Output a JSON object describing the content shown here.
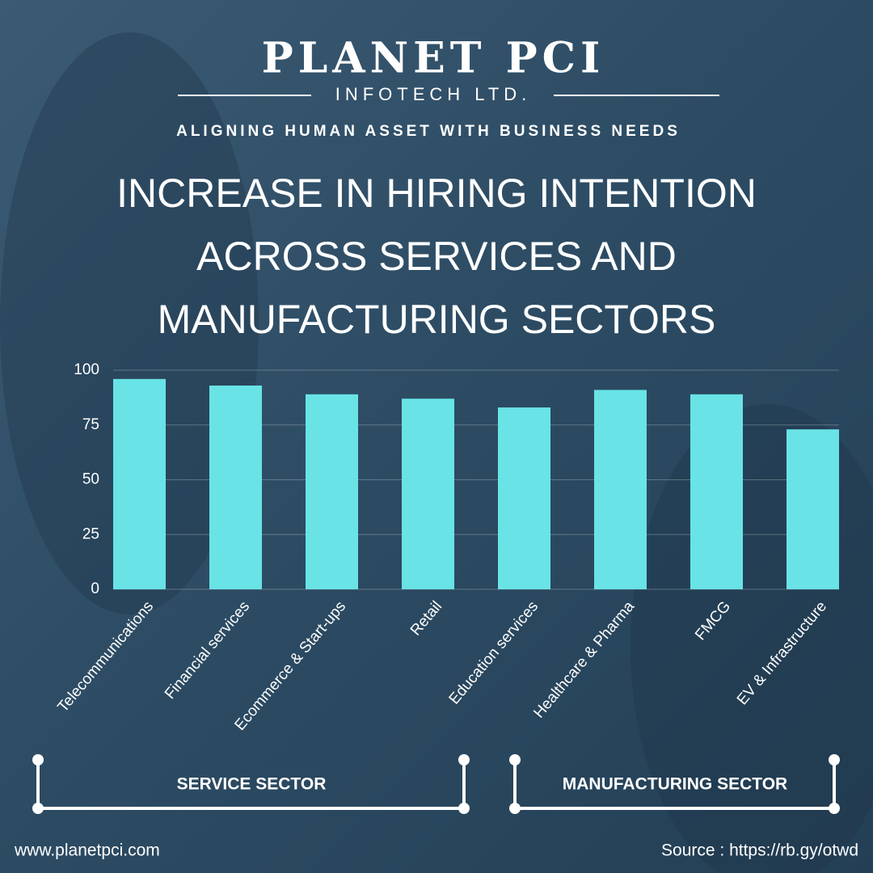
{
  "brand": {
    "name": "PLANET PCI",
    "subtitle": "INFOTECH LTD.",
    "tagline": "ALIGNING HUMAN ASSET WITH BUSINESS NEEDS"
  },
  "chart_data": {
    "type": "bar",
    "title": [
      "INCREASE IN HIRING INTENTION",
      "ACROSS SERVICES AND",
      "MANUFACTURING SECTORS"
    ],
    "categories": [
      "Telecommunications",
      "Financial services",
      "Ecommerce & Start-ups",
      "Retail",
      "Education services",
      "Healthcare & Pharma",
      "FMCG",
      "EV & Infrastructure"
    ],
    "values": [
      96,
      93,
      89,
      87,
      83,
      91,
      89,
      73
    ],
    "color": "#69e3e6",
    "ylim": [
      0,
      100
    ],
    "yticks": [
      0,
      25,
      50,
      75,
      100
    ],
    "grid": true
  },
  "sectors": [
    "SERVICE SECTOR",
    "MANUFACTURING SECTOR"
  ],
  "footer": {
    "website": "www.planetpci.com",
    "source": "Source : https://rb.gy/otwd"
  }
}
